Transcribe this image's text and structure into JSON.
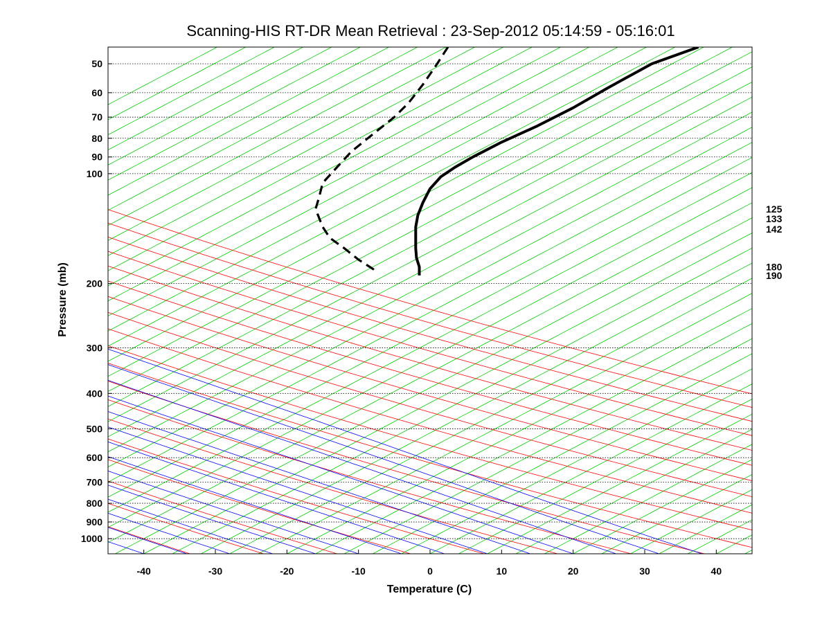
{
  "chart_data": {
    "type": "line",
    "title": "Scanning-HIS RT-DR Mean Retrieval : 23-Sep-2012 05:14:59 - 05:16:01",
    "xlabel": "Temperature (C)",
    "ylabel": "Pressure (mb)",
    "xlim": [
      -45,
      45
    ],
    "ylim": [
      1100,
      45
    ],
    "y_scale": "log",
    "x_ticks": [
      "-40",
      "-30",
      "-20",
      "-10",
      "0",
      "10",
      "20",
      "30",
      "40"
    ],
    "y_ticks": [
      "50",
      "60",
      "70",
      "80",
      "90",
      "100",
      "200",
      "300",
      "400",
      "500",
      "600",
      "700",
      "800",
      "900",
      "1000"
    ],
    "right_labels": [
      "125",
      "133",
      "142",
      "180",
      "190"
    ],
    "grid": true,
    "background_lines": {
      "dry_adiabats_color": "#ff0000",
      "moist_adiabats_color": "#0000ff",
      "isotherms_color": "#00cc00"
    },
    "series": [
      {
        "style": "solid",
        "color": "#000000",
        "x_temperature_c": [
          37.5,
          31,
          25,
          20,
          15,
          10,
          6,
          3.5,
          1.5,
          0,
          -1,
          -1.7,
          -2,
          -2,
          -2,
          -1.9,
          -1.5,
          -1.5
        ],
        "y_pressure_mb": [
          45,
          50,
          58,
          66,
          74,
          82,
          90,
          96,
          102,
          110,
          120,
          130,
          140,
          150,
          160,
          170,
          180,
          190
        ]
      },
      {
        "style": "dashed",
        "color": "#000000",
        "x_temperature_c": [
          2.5,
          1,
          -1,
          -3,
          -5,
          -8,
          -11,
          -13,
          -15,
          -15.5,
          -16,
          -15,
          -14,
          -12,
          -10,
          -7.5
        ],
        "y_pressure_mb": [
          45,
          50,
          57,
          64,
          70,
          78,
          87,
          96,
          106,
          116,
          125,
          140,
          150,
          160,
          172,
          185
        ]
      }
    ]
  }
}
